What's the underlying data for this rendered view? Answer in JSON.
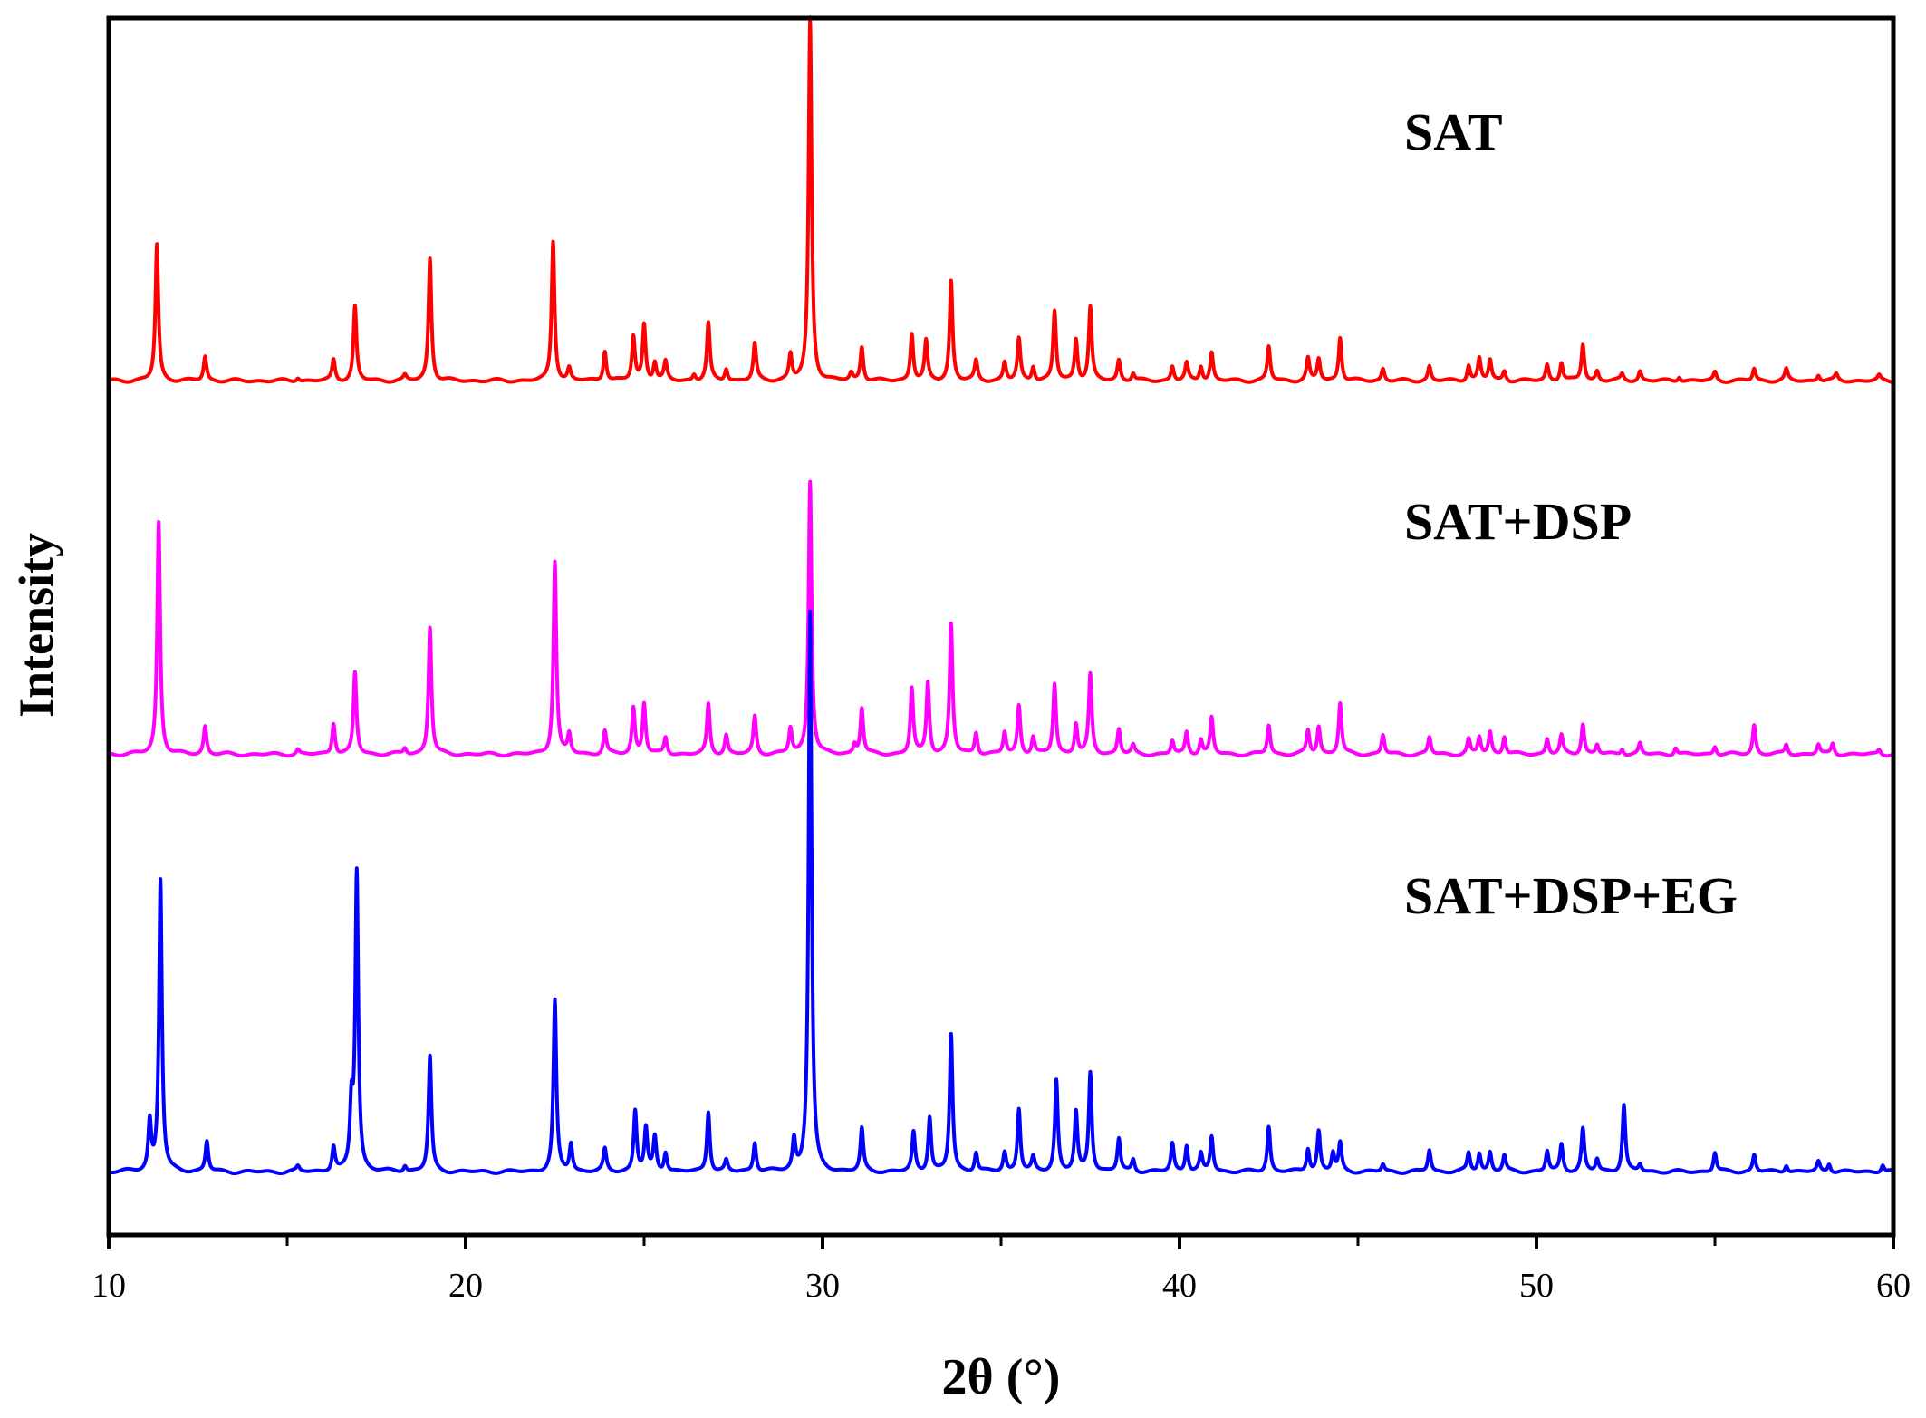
{
  "chart_data": {
    "type": "line",
    "title": "",
    "xlabel": "2θ (°)",
    "ylabel": "Intensity",
    "xlim": [
      10,
      60
    ],
    "ylim": [
      0,
      100
    ],
    "x_ticks": [
      10,
      20,
      30,
      40,
      50,
      60
    ],
    "x_tick_labels": [
      "10",
      "20",
      "30",
      "40",
      "50",
      "60"
    ],
    "x_minor_ticks": [
      15,
      25,
      35,
      45,
      55
    ],
    "y_ticks_shown": false,
    "grid": false,
    "legend": "none",
    "annotations": [
      {
        "text": "SAT",
        "series": "SAT"
      },
      {
        "text": "SAT+DSP",
        "series": "SAT+DSP"
      },
      {
        "text": "SAT+DSP+EG",
        "series": "SAT+DSP+EG"
      }
    ],
    "peak_width": 0.05,
    "series": [
      {
        "name": "SAT",
        "color": "#ff0000",
        "offset": 70.2,
        "baseline_wobble": 0.15,
        "peaks": [
          {
            "x": 11.35,
            "h": 11.2
          },
          {
            "x": 12.7,
            "h": 2.0
          },
          {
            "x": 15.3,
            "h": 0.3
          },
          {
            "x": 16.3,
            "h": 1.7
          },
          {
            "x": 16.9,
            "h": 6.1
          },
          {
            "x": 18.3,
            "h": 0.4
          },
          {
            "x": 19.0,
            "h": 10.1
          },
          {
            "x": 22.45,
            "h": 11.5
          },
          {
            "x": 22.9,
            "h": 1.0
          },
          {
            "x": 23.9,
            "h": 2.5
          },
          {
            "x": 24.7,
            "h": 3.6
          },
          {
            "x": 25.0,
            "h": 4.6
          },
          {
            "x": 25.3,
            "h": 1.5
          },
          {
            "x": 25.6,
            "h": 1.5
          },
          {
            "x": 26.4,
            "h": 0.5
          },
          {
            "x": 26.8,
            "h": 4.7
          },
          {
            "x": 27.3,
            "h": 1.0
          },
          {
            "x": 28.1,
            "h": 3.0
          },
          {
            "x": 29.1,
            "h": 2.1
          },
          {
            "x": 29.65,
            "h": 29.8
          },
          {
            "x": 30.8,
            "h": 0.6
          },
          {
            "x": 31.1,
            "h": 2.8
          },
          {
            "x": 32.5,
            "h": 3.9
          },
          {
            "x": 32.9,
            "h": 3.2
          },
          {
            "x": 33.6,
            "h": 8.2
          },
          {
            "x": 34.3,
            "h": 1.6
          },
          {
            "x": 35.1,
            "h": 1.5
          },
          {
            "x": 35.5,
            "h": 3.4
          },
          {
            "x": 35.9,
            "h": 1.2
          },
          {
            "x": 36.5,
            "h": 5.7
          },
          {
            "x": 37.1,
            "h": 3.4
          },
          {
            "x": 37.5,
            "h": 6.0
          },
          {
            "x": 38.3,
            "h": 1.7
          },
          {
            "x": 38.7,
            "h": 0.6
          },
          {
            "x": 39.8,
            "h": 1.2
          },
          {
            "x": 40.2,
            "h": 1.4
          },
          {
            "x": 40.6,
            "h": 1.2
          },
          {
            "x": 40.9,
            "h": 2.3
          },
          {
            "x": 42.5,
            "h": 2.8
          },
          {
            "x": 43.6,
            "h": 1.8
          },
          {
            "x": 43.9,
            "h": 1.8
          },
          {
            "x": 44.5,
            "h": 3.6
          },
          {
            "x": 45.7,
            "h": 1.0
          },
          {
            "x": 47.0,
            "h": 1.2
          },
          {
            "x": 48.1,
            "h": 1.3
          },
          {
            "x": 48.4,
            "h": 1.8
          },
          {
            "x": 48.7,
            "h": 1.7
          },
          {
            "x": 49.1,
            "h": 0.8
          },
          {
            "x": 50.3,
            "h": 1.3
          },
          {
            "x": 50.7,
            "h": 1.5
          },
          {
            "x": 51.3,
            "h": 3.0
          },
          {
            "x": 51.7,
            "h": 0.8
          },
          {
            "x": 52.4,
            "h": 0.5
          },
          {
            "x": 52.9,
            "h": 0.8
          },
          {
            "x": 54.0,
            "h": 0.4
          },
          {
            "x": 55.0,
            "h": 0.7
          },
          {
            "x": 56.1,
            "h": 1.0
          },
          {
            "x": 57.0,
            "h": 0.9
          },
          {
            "x": 57.9,
            "h": 0.5
          },
          {
            "x": 58.4,
            "h": 0.5
          },
          {
            "x": 59.6,
            "h": 0.4
          }
        ]
      },
      {
        "name": "SAT+DSP",
        "color": "#ff00ff",
        "offset": 39.5,
        "baseline_wobble": 0.15,
        "peaks": [
          {
            "x": 11.4,
            "h": 19.1
          },
          {
            "x": 12.7,
            "h": 2.3
          },
          {
            "x": 15.3,
            "h": 0.4
          },
          {
            "x": 16.3,
            "h": 2.6
          },
          {
            "x": 16.9,
            "h": 6.7
          },
          {
            "x": 18.3,
            "h": 0.5
          },
          {
            "x": 19.0,
            "h": 10.5
          },
          {
            "x": 22.5,
            "h": 15.9
          },
          {
            "x": 22.9,
            "h": 1.6
          },
          {
            "x": 23.9,
            "h": 1.9
          },
          {
            "x": 24.7,
            "h": 3.8
          },
          {
            "x": 25.0,
            "h": 4.2
          },
          {
            "x": 25.6,
            "h": 1.4
          },
          {
            "x": 26.8,
            "h": 4.1
          },
          {
            "x": 27.3,
            "h": 1.6
          },
          {
            "x": 28.1,
            "h": 3.1
          },
          {
            "x": 29.1,
            "h": 2.1
          },
          {
            "x": 29.65,
            "h": 22.5
          },
          {
            "x": 30.9,
            "h": 0.8
          },
          {
            "x": 31.1,
            "h": 3.8
          },
          {
            "x": 32.5,
            "h": 5.4
          },
          {
            "x": 32.95,
            "h": 5.9
          },
          {
            "x": 33.6,
            "h": 10.7
          },
          {
            "x": 34.3,
            "h": 1.8
          },
          {
            "x": 35.1,
            "h": 1.8
          },
          {
            "x": 35.5,
            "h": 4.0
          },
          {
            "x": 35.9,
            "h": 1.4
          },
          {
            "x": 36.5,
            "h": 5.8
          },
          {
            "x": 37.1,
            "h": 2.5
          },
          {
            "x": 37.5,
            "h": 6.5
          },
          {
            "x": 38.3,
            "h": 2.1
          },
          {
            "x": 38.7,
            "h": 0.7
          },
          {
            "x": 39.8,
            "h": 1.1
          },
          {
            "x": 40.2,
            "h": 1.8
          },
          {
            "x": 40.6,
            "h": 1.2
          },
          {
            "x": 40.9,
            "h": 3.0
          },
          {
            "x": 42.5,
            "h": 2.4
          },
          {
            "x": 43.6,
            "h": 1.9
          },
          {
            "x": 43.9,
            "h": 2.3
          },
          {
            "x": 44.5,
            "h": 4.2
          },
          {
            "x": 45.7,
            "h": 1.6
          },
          {
            "x": 47.0,
            "h": 1.4
          },
          {
            "x": 48.1,
            "h": 1.2
          },
          {
            "x": 48.4,
            "h": 1.4
          },
          {
            "x": 48.7,
            "h": 1.8
          },
          {
            "x": 49.1,
            "h": 1.5
          },
          {
            "x": 50.3,
            "h": 1.3
          },
          {
            "x": 50.7,
            "h": 1.5
          },
          {
            "x": 51.3,
            "h": 2.5
          },
          {
            "x": 51.7,
            "h": 0.8
          },
          {
            "x": 52.4,
            "h": 0.5
          },
          {
            "x": 52.9,
            "h": 0.9
          },
          {
            "x": 53.9,
            "h": 0.6
          },
          {
            "x": 55.0,
            "h": 0.7
          },
          {
            "x": 56.1,
            "h": 2.4
          },
          {
            "x": 57.0,
            "h": 0.8
          },
          {
            "x": 57.9,
            "h": 0.8
          },
          {
            "x": 58.3,
            "h": 0.9
          },
          {
            "x": 59.6,
            "h": 0.4
          }
        ]
      },
      {
        "name": "SAT+DSP+EG",
        "color": "#0000ff",
        "offset": 5.2,
        "baseline_wobble": 0.15,
        "peaks": [
          {
            "x": 11.15,
            "h": 4.0
          },
          {
            "x": 11.45,
            "h": 24.0
          },
          {
            "x": 12.75,
            "h": 2.5
          },
          {
            "x": 15.3,
            "h": 0.4
          },
          {
            "x": 16.3,
            "h": 2.0
          },
          {
            "x": 16.8,
            "h": 5.0
          },
          {
            "x": 16.95,
            "h": 24.5
          },
          {
            "x": 18.3,
            "h": 0.5
          },
          {
            "x": 19.0,
            "h": 9.5
          },
          {
            "x": 22.5,
            "h": 14.0
          },
          {
            "x": 22.95,
            "h": 2.3
          },
          {
            "x": 23.9,
            "h": 1.8
          },
          {
            "x": 24.75,
            "h": 5.0
          },
          {
            "x": 25.05,
            "h": 3.5
          },
          {
            "x": 25.3,
            "h": 2.8
          },
          {
            "x": 25.6,
            "h": 1.6
          },
          {
            "x": 26.8,
            "h": 5.0
          },
          {
            "x": 27.3,
            "h": 0.9
          },
          {
            "x": 28.1,
            "h": 2.4
          },
          {
            "x": 29.2,
            "h": 2.5
          },
          {
            "x": 29.65,
            "h": 46.0
          },
          {
            "x": 31.1,
            "h": 3.5
          },
          {
            "x": 32.55,
            "h": 3.2
          },
          {
            "x": 33.0,
            "h": 4.5
          },
          {
            "x": 33.6,
            "h": 11.3
          },
          {
            "x": 34.3,
            "h": 1.6
          },
          {
            "x": 35.1,
            "h": 1.6
          },
          {
            "x": 35.5,
            "h": 5.2
          },
          {
            "x": 35.9,
            "h": 1.1
          },
          {
            "x": 36.55,
            "h": 7.5
          },
          {
            "x": 37.1,
            "h": 4.8
          },
          {
            "x": 37.5,
            "h": 8.2
          },
          {
            "x": 38.3,
            "h": 2.7
          },
          {
            "x": 38.7,
            "h": 1.0
          },
          {
            "x": 39.8,
            "h": 2.3
          },
          {
            "x": 40.2,
            "h": 2.2
          },
          {
            "x": 40.6,
            "h": 1.4
          },
          {
            "x": 40.9,
            "h": 2.9
          },
          {
            "x": 42.5,
            "h": 3.7
          },
          {
            "x": 43.6,
            "h": 1.9
          },
          {
            "x": 43.9,
            "h": 3.3
          },
          {
            "x": 44.3,
            "h": 1.5
          },
          {
            "x": 44.5,
            "h": 2.3
          },
          {
            "x": 45.7,
            "h": 0.6
          },
          {
            "x": 47.0,
            "h": 1.8
          },
          {
            "x": 48.1,
            "h": 1.5
          },
          {
            "x": 48.4,
            "h": 1.5
          },
          {
            "x": 48.7,
            "h": 1.6
          },
          {
            "x": 49.1,
            "h": 1.3
          },
          {
            "x": 50.3,
            "h": 1.7
          },
          {
            "x": 50.7,
            "h": 2.2
          },
          {
            "x": 51.3,
            "h": 3.5
          },
          {
            "x": 51.7,
            "h": 1.0
          },
          {
            "x": 52.45,
            "h": 5.5
          },
          {
            "x": 52.9,
            "h": 0.6
          },
          {
            "x": 55.0,
            "h": 1.6
          },
          {
            "x": 56.1,
            "h": 1.4
          },
          {
            "x": 57.0,
            "h": 0.6
          },
          {
            "x": 57.9,
            "h": 0.8
          },
          {
            "x": 58.2,
            "h": 0.7
          },
          {
            "x": 59.7,
            "h": 0.6
          }
        ]
      }
    ]
  }
}
